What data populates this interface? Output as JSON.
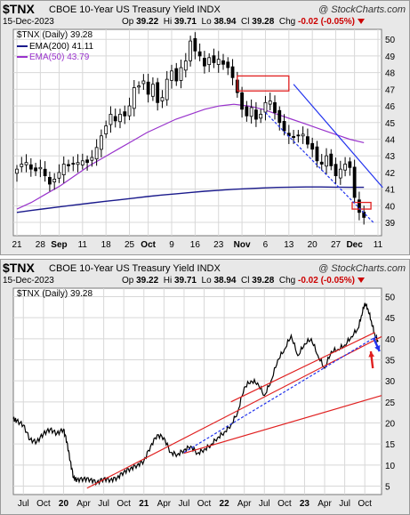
{
  "header": {
    "symbol": "$TNX",
    "name": "CBOE 10-Year US Treasury Yield",
    "exchange": "INDX",
    "watermark": "@ StockCharts.com",
    "date": "15-Dec-2023",
    "op_label": "Op",
    "op": "39.22",
    "hi_label": "Hi",
    "hi": "39.71",
    "lo_label": "Lo",
    "lo": "38.94",
    "cl_label": "Cl",
    "cl": "39.28",
    "chg_label": "Chg",
    "chg": "-0.02 (-0.05%)"
  },
  "colors": {
    "ema200": "#1a1a8c",
    "ema50": "#9933cc",
    "candle": "#000000",
    "trend_blue": "#2233ee",
    "trend_red": "#e02020",
    "panel_bg": "#ffffff",
    "frame_bg": "#e8e8e8"
  },
  "chart_data": [
    {
      "type": "candlestick",
      "interval": "Daily",
      "legend": [
        {
          "key": "price",
          "label": "$TNX (Daily)",
          "value": "39.28"
        },
        {
          "key": "ema200",
          "label": "EMA(200)",
          "value": "41.11"
        },
        {
          "key": "ema50",
          "label": "EMA(50)",
          "value": "43.79"
        }
      ],
      "ylim": [
        38.2,
        50.6
      ],
      "y_ticks": [
        "39",
        "40",
        "41",
        "42",
        "43",
        "44",
        "45",
        "46",
        "47",
        "48",
        "49",
        "50"
      ],
      "x_ticks": [
        "21",
        "28",
        "Sep",
        "11",
        "18",
        "25",
        "Oct",
        "9",
        "16",
        "23",
        "Nov",
        "6",
        "13",
        "20",
        "27",
        "Dec",
        "11"
      ],
      "x_tick_days": [
        0,
        5,
        9,
        14,
        19,
        24,
        28,
        33,
        38,
        43,
        48,
        53,
        58,
        63,
        68,
        72,
        77
      ],
      "bold_ticks": [
        "Sep",
        "Oct",
        "Nov",
        "Dec"
      ],
      "price_close": [
        42.2,
        42.5,
        42.6,
        42.2,
        42.1,
        42.3,
        41.8,
        41.3,
        41.6,
        42.0,
        42.5,
        42.4,
        42.5,
        42.6,
        42.7,
        42.6,
        42.9,
        43.5,
        44.2,
        44.8,
        45.5,
        45.1,
        45.5,
        45.4,
        46.0,
        47.1,
        47.2,
        47.5,
        46.7,
        47.3,
        46.2,
        46.5,
        47.6,
        48.1,
        47.5,
        48.3,
        48.7,
        49.9,
        49.3,
        49.0,
        48.4,
        48.9,
        48.6,
        48.8,
        48.5,
        48.3,
        47.7,
        46.8,
        45.8,
        45.4,
        45.9,
        45.2,
        45.5,
        46.2,
        46.3,
        45.6,
        45.0,
        44.5,
        44.2,
        44.1,
        44.2,
        44.3,
        43.7,
        43.4,
        42.7,
        42.5,
        43.0,
        42.4,
        41.8,
        42.2,
        42.5,
        42.3,
        40.5,
        39.6,
        39.3
      ],
      "ema200": [
        39.6,
        39.72,
        39.83,
        39.94,
        40.05,
        40.15,
        40.25,
        40.35,
        40.45,
        40.55,
        40.64,
        40.72,
        40.8,
        40.87,
        40.93,
        40.99,
        41.03,
        41.07,
        41.1,
        41.12,
        41.13,
        41.13,
        41.12,
        41.11,
        41.11
      ],
      "ema50": [
        39.8,
        40.2,
        40.7,
        41.2,
        41.8,
        42.4,
        42.9,
        43.4,
        43.9,
        44.4,
        44.8,
        45.2,
        45.5,
        45.8,
        46.0,
        46.1,
        46.0,
        45.8,
        45.5,
        45.2,
        44.9,
        44.6,
        44.3,
        44.0,
        43.79
      ],
      "annotations": [
        {
          "type": "box",
          "color": "red",
          "x": [
            47,
            58
          ],
          "y": [
            46.9,
            47.8
          ]
        },
        {
          "type": "box",
          "color": "red",
          "x": [
            71.5,
            75.5
          ],
          "y": [
            39.8,
            40.2
          ]
        },
        {
          "type": "trendline",
          "color": "blue",
          "from": [
            59,
            47.3
          ],
          "to": [
            78,
            41.1
          ]
        },
        {
          "type": "trendline",
          "color": "blue",
          "dashed": true,
          "from": [
            53,
            45.6
          ],
          "to": [
            76,
            39.0
          ]
        }
      ]
    },
    {
      "type": "line",
      "interval": "Daily",
      "legend": [
        {
          "key": "price",
          "label": "$TNX (Daily)",
          "value": "39.28"
        }
      ],
      "ylim": [
        3,
        52
      ],
      "y_ticks": [
        "5",
        "10",
        "15",
        "20",
        "25",
        "30",
        "35",
        "40",
        "45",
        "50"
      ],
      "x_ticks": [
        "Jul",
        "Oct",
        "20",
        "Apr",
        "Jul",
        "Oct",
        "21",
        "Apr",
        "Jul",
        "Oct",
        "22",
        "Apr",
        "Jul",
        "Oct",
        "23",
        "Apr",
        "Jul",
        "Oct"
      ],
      "x_tick_months": [
        0,
        3,
        6,
        9,
        12,
        15,
        18,
        21,
        24,
        27,
        30,
        33,
        36,
        39,
        42,
        45,
        48,
        51
      ],
      "bold_ticks": [
        "20",
        "21",
        "22",
        "23"
      ],
      "x_range_months": [
        -1.5,
        53.5
      ],
      "series": [
        {
          "x": [
            -1.5,
            -1,
            0,
            1,
            2,
            3,
            4,
            5,
            6,
            6.5,
            7,
            7.5,
            8,
            9,
            10,
            11,
            12,
            13,
            14,
            15,
            16,
            17,
            18,
            19,
            20,
            21,
            22,
            23,
            24,
            25,
            26,
            27,
            28,
            29,
            30,
            31,
            32,
            33,
            34,
            35,
            36,
            37,
            38,
            39,
            40,
            41,
            42,
            43,
            44,
            45,
            46,
            47,
            48,
            49,
            50,
            50.5,
            51,
            51.5,
            52,
            52.5,
            53
          ],
          "y": [
            21,
            20.5,
            19.5,
            16,
            15.5,
            17.5,
            18.5,
            17.5,
            18.5,
            15.5,
            11,
            7,
            6.5,
            6.8,
            6.6,
            5.9,
            6.8,
            6.5,
            7.0,
            8.4,
            9.2,
            10.0,
            11.0,
            14.5,
            17.2,
            16.5,
            13.0,
            12.5,
            13.6,
            14.5,
            12.8,
            13.7,
            14.8,
            16.5,
            17.8,
            19.5,
            22.5,
            28.5,
            30.0,
            29.5,
            26.5,
            30.0,
            35.0,
            37.5,
            40.8,
            36.0,
            38.8,
            40.0,
            36.0,
            33.0,
            37.0,
            37.5,
            38.5,
            40.5,
            42.5,
            45.5,
            48.5,
            47.0,
            44.0,
            41.0,
            39.28
          ]
        }
      ],
      "annotations": [
        {
          "type": "trendline",
          "color": "red",
          "from": [
            9.5,
            4.5
          ],
          "to": [
            53.5,
            40.5
          ]
        },
        {
          "type": "trendline",
          "color": "red",
          "from": [
            24,
            12.8
          ],
          "to": [
            53.5,
            26.5
          ]
        },
        {
          "type": "trendline",
          "color": "red",
          "from": [
            31,
            25
          ],
          "to": [
            52.5,
            41.5
          ]
        },
        {
          "type": "trendline",
          "color": "blue",
          "dashed": true,
          "from": [
            24,
            13.0
          ],
          "to": [
            53,
            40.8
          ]
        },
        {
          "type": "arrow",
          "color": "blue",
          "from": [
            52.3,
            40.2
          ],
          "to": [
            53.2,
            37.0
          ]
        },
        {
          "type": "arrow",
          "color": "red",
          "from": [
            52.2,
            33.0
          ],
          "to": [
            51.9,
            37.0
          ]
        }
      ]
    }
  ]
}
